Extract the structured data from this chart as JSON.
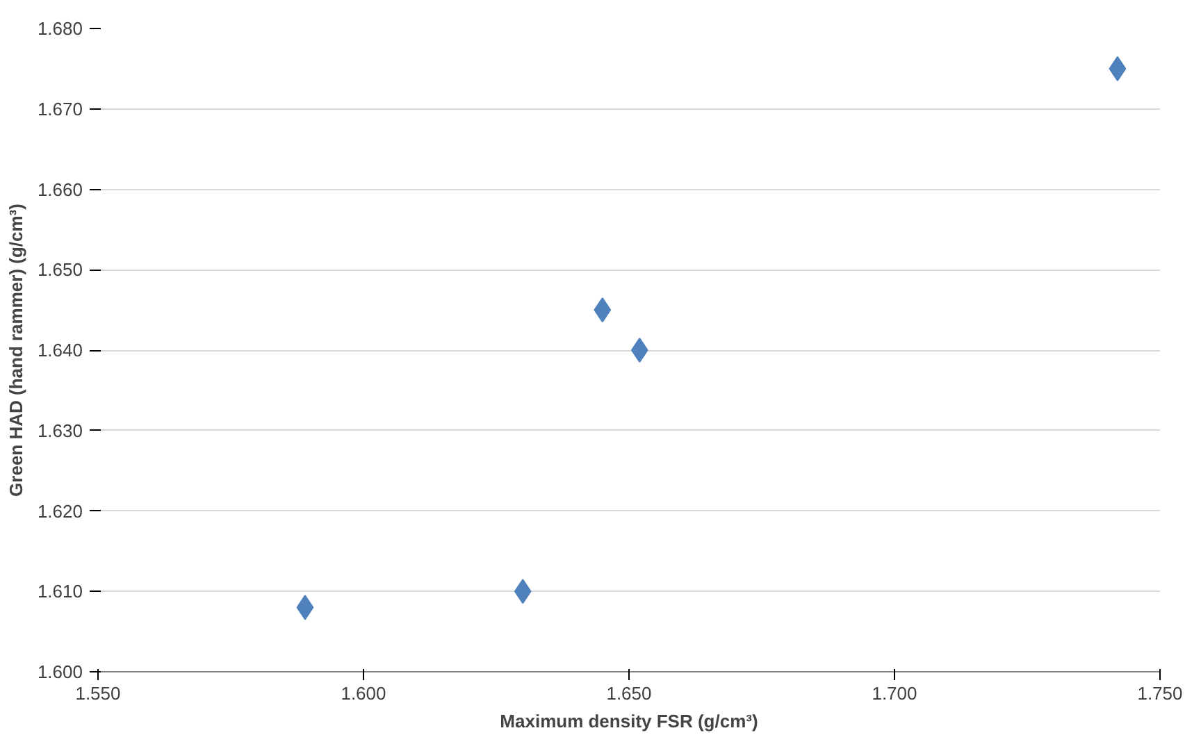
{
  "chart_data": {
    "type": "scatter",
    "xlabel": "Maximum density FSR (g/cm³)",
    "ylabel": "Green HAD (hand rammer) (g/cm³)",
    "x": [
      1.589,
      1.63,
      1.645,
      1.652,
      1.742
    ],
    "series": [
      {
        "color": "#4f81bd",
        "values": [
          1.608,
          1.61,
          1.645,
          1.64,
          1.675
        ]
      }
    ],
    "xlim": [
      1.55,
      1.75
    ],
    "xticks": [
      {
        "value": 1.55,
        "label": "1.550"
      },
      {
        "value": 1.6,
        "label": "1.600"
      },
      {
        "value": 1.65,
        "label": "1.650"
      },
      {
        "value": 1.7,
        "label": "1.700"
      },
      {
        "value": 1.75,
        "label": "1.750"
      }
    ],
    "ylim": [
      1.6,
      1.68
    ],
    "yticks": [
      {
        "value": 1.6,
        "label": "1.600"
      },
      {
        "value": 1.61,
        "label": "1.610"
      },
      {
        "value": 1.62,
        "label": "1.620"
      },
      {
        "value": 1.63,
        "label": "1.630"
      },
      {
        "value": 1.64,
        "label": "1.640"
      },
      {
        "value": 1.65,
        "label": "1.650"
      },
      {
        "value": 1.66,
        "label": "1.660"
      },
      {
        "value": 1.67,
        "label": "1.670"
      },
      {
        "value": 1.68,
        "label": "1.680"
      }
    ],
    "grid": "y",
    "marker": "diamond"
  }
}
